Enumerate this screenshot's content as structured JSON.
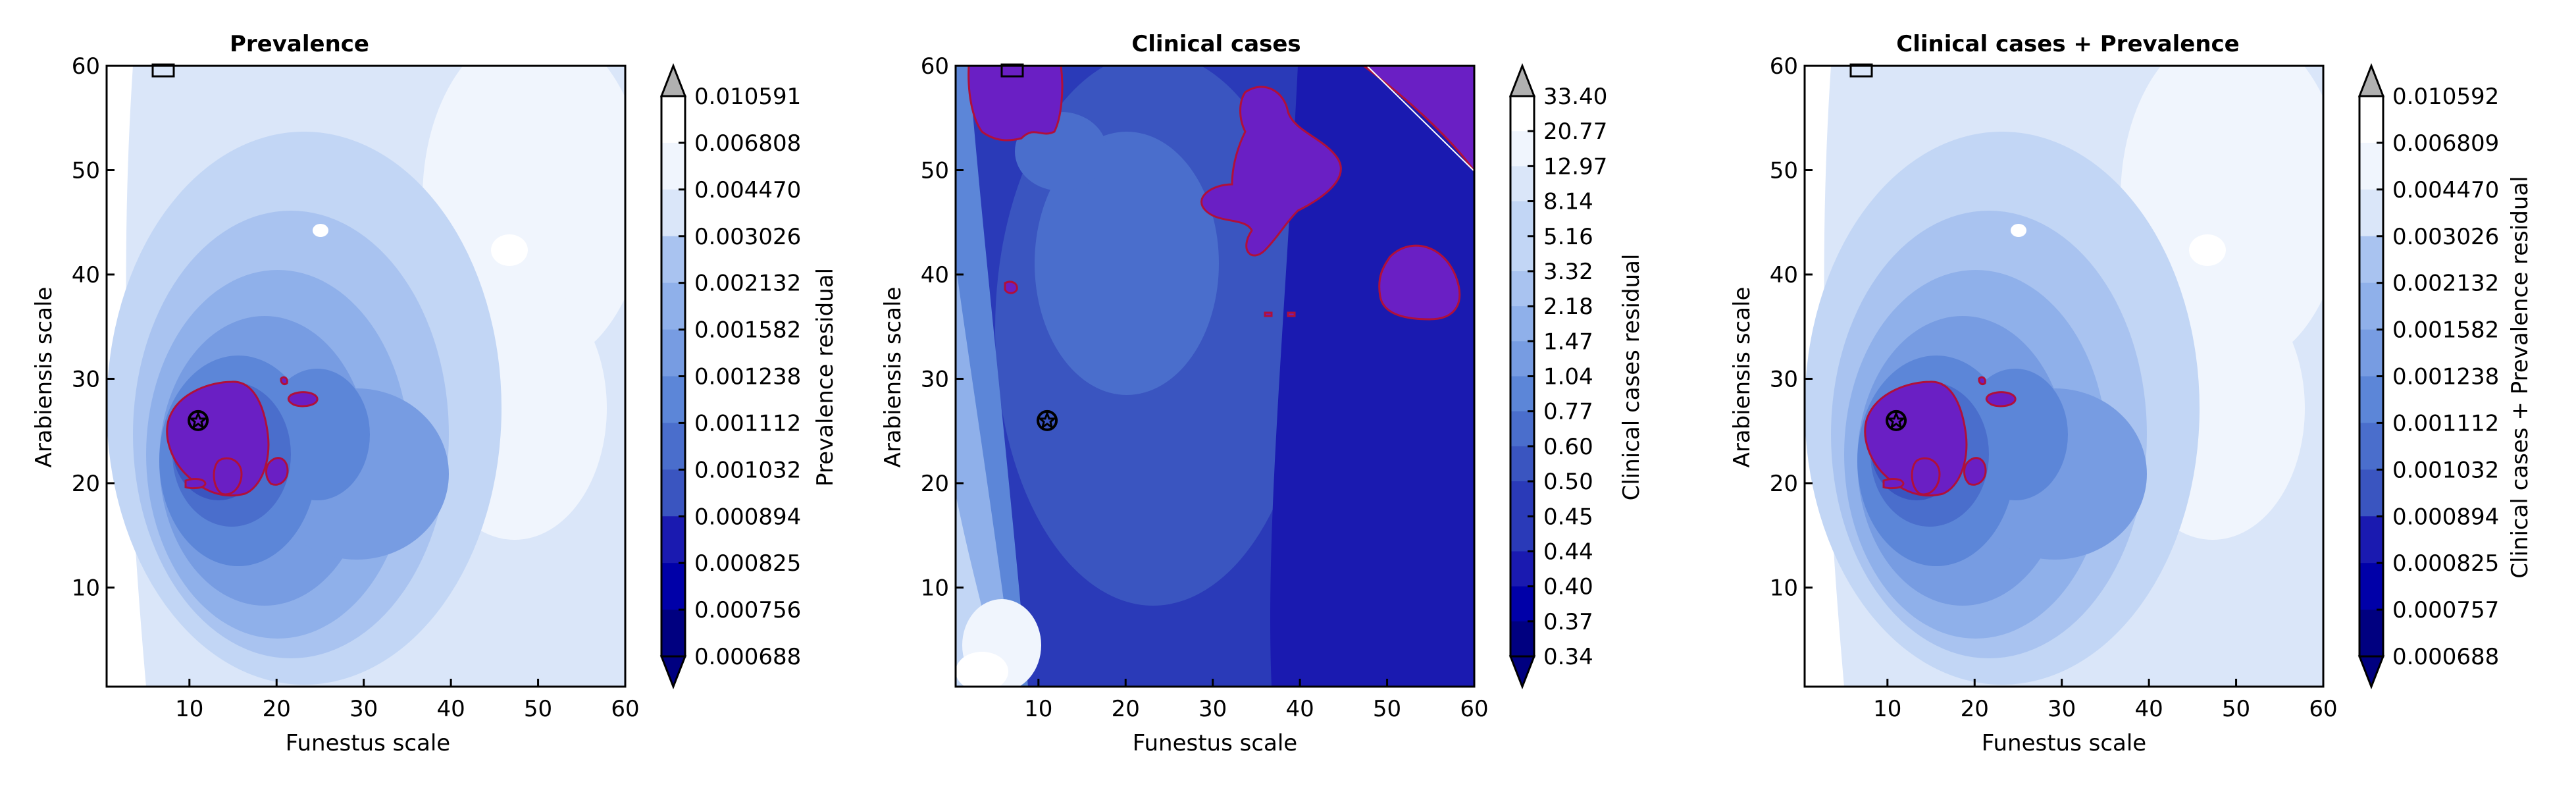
{
  "palette": {
    "levels": [
      "#000080",
      "#0000a8",
      "#1a1ab0",
      "#2a3ab8",
      "#3a55c0",
      "#4a6ecc",
      "#5c86d8",
      "#779ce2",
      "#8fb0ea",
      "#a9c3f0",
      "#c2d6f5",
      "#dae6f9",
      "#f0f5fd",
      "#ffffff"
    ],
    "contour_line": "#b0103a",
    "contour_fill": "#6a1fc4",
    "extend_over": "#b0b0b0",
    "extend_under": "#000080"
  },
  "chart_data": [
    {
      "type": "heatmap",
      "title": "Prevalence",
      "xlabel": "Funestus scale",
      "ylabel": "Arabiensis scale",
      "xlim": [
        0.5,
        60
      ],
      "ylim": [
        0.5,
        60
      ],
      "xticks": [
        10,
        20,
        30,
        40,
        50,
        60
      ],
      "yticks": [
        10,
        20,
        30,
        40,
        50,
        60
      ],
      "colorbar_label": "Prevalence residual",
      "colorbar_levels": [
        "0.000688",
        "0.000756",
        "0.000825",
        "0.000894",
        "0.001032",
        "0.001112",
        "0.001238",
        "0.001582",
        "0.002132",
        "0.003026",
        "0.004470",
        "0.006808",
        "0.010591"
      ],
      "minimum_marker": [
        11,
        26
      ],
      "contour_region": "low-residual area around (10-21, 19-30)",
      "field": "base"
    },
    {
      "type": "heatmap",
      "title": "Clinical cases",
      "xlabel": "Funestus scale",
      "ylabel": "Arabiensis scale",
      "xlim": [
        0.5,
        60
      ],
      "ylim": [
        0.5,
        60
      ],
      "xticks": [
        10,
        20,
        30,
        40,
        50,
        60
      ],
      "yticks": [
        10,
        20,
        30,
        40,
        50,
        60
      ],
      "colorbar_label": "Clinical cases residual",
      "colorbar_levels": [
        "0.34",
        "0.37",
        "0.40",
        "0.44",
        "0.45",
        "0.50",
        "0.60",
        "0.77",
        "1.04",
        "1.47",
        "2.18",
        "3.32",
        "5.16",
        "8.14",
        "12.97",
        "20.77",
        "33.40"
      ],
      "minimum_marker": [
        11,
        26
      ],
      "contour_region": "low-residual areas at upper-left and upper-right",
      "field": "clinical"
    },
    {
      "type": "heatmap",
      "title": "Clinical cases + Prevalence",
      "xlabel": "Funestus scale",
      "ylabel": "Arabiensis scale",
      "xlim": [
        0.5,
        60
      ],
      "ylim": [
        0.5,
        60
      ],
      "xticks": [
        10,
        20,
        30,
        40,
        50,
        60
      ],
      "yticks": [
        10,
        20,
        30,
        40,
        50,
        60
      ],
      "colorbar_label": "Clinical cases + Prevalence residual",
      "colorbar_levels": [
        "0.000688",
        "0.000757",
        "0.000825",
        "0.000894",
        "0.001032",
        "0.001112",
        "0.001238",
        "0.001582",
        "0.002132",
        "0.003026",
        "0.004470",
        "0.006809",
        "0.010592"
      ],
      "minimum_marker": [
        11,
        26
      ],
      "contour_region": "low-residual area around (10-21, 19-30)",
      "field": "base"
    }
  ]
}
